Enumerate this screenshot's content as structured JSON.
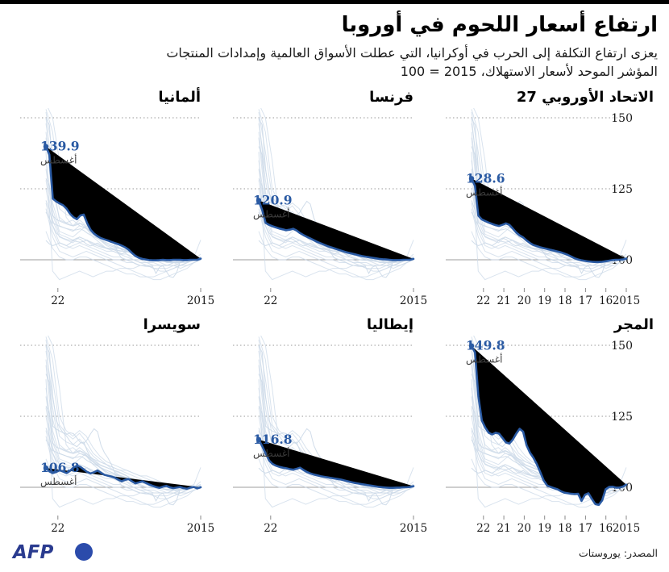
{
  "header": {
    "title": "ارتفاع أسعار اللحوم في أوروبا",
    "subtitle": "يعزى ارتفاع التكلفة إلى الحرب في أوكرانيا، التي عطلت الأسواق العالمية وإمدادات المنتجات",
    "index_note": "المؤشر الموحد لأسعار الاستهلاك، 2015 = 100"
  },
  "footer": {
    "afp_label": "AFP",
    "source": "المصدر: يوروستات"
  },
  "colors": {
    "accent": "#2a5aa3",
    "context_line": "#ccd9e8",
    "grid_dotted": "#999999",
    "baseline": "#9c9c9c",
    "tick": "#8a8a8a",
    "month_label": "#3c3c3c",
    "afp_navy": "#2a3b8f",
    "afp_blue": "#2b4bab"
  },
  "chart_data": {
    "type": "line",
    "note": "x axis runs right-to-left in time: left edge = Aug 2022, right edge = Jan 2015; 46 evenly spaced points per main series",
    "x_span_months": 91,
    "y_ticks": [
      {
        "label": "150",
        "value": 150,
        "style": "dotted"
      },
      {
        "label": "125",
        "value": 125,
        "style": "dotted"
      },
      {
        "label": "100",
        "value": 100,
        "style": "solid"
      }
    ],
    "panels": [
      {
        "id": "eu27",
        "title": "الاتحاد الأوروبي 27",
        "value_label": "128.6",
        "month_label": "أغسطس",
        "show_y_labels": true,
        "x_ticks": [
          {
            "label": "22",
            "month": 7
          },
          {
            "label": "21",
            "month": 19
          },
          {
            "label": "20",
            "month": 31
          },
          {
            "label": "19",
            "month": 43
          },
          {
            "label": "18",
            "month": 55
          },
          {
            "label": "17",
            "month": 67
          },
          {
            "label": "16",
            "month": 79
          },
          {
            "label": "2015",
            "month": 91
          }
        ],
        "values": [
          128.6,
          126.0,
          115.5,
          114.2,
          113.6,
          113.1,
          112.6,
          112.2,
          111.9,
          112.3,
          112.8,
          112.3,
          111.0,
          109.6,
          108.6,
          107.9,
          106.8,
          105.9,
          105.2,
          104.8,
          104.4,
          104.1,
          103.8,
          103.5,
          103.2,
          102.9,
          102.6,
          102.2,
          101.7,
          101.1,
          100.5,
          100.1,
          99.8,
          99.6,
          99.4,
          99.3,
          99.2,
          99.2,
          99.3,
          99.5,
          99.7,
          99.9,
          100.0,
          100.0,
          100.1,
          100.4
        ]
      },
      {
        "id": "france",
        "title": "فرنسا",
        "value_label": "120.9",
        "month_label": "أغسطس",
        "show_y_labels": false,
        "x_ticks": [
          {
            "label": "22",
            "month": 7
          },
          {
            "label": "2015",
            "month": 91
          }
        ],
        "values": [
          120.9,
          117.5,
          113.0,
          112.3,
          111.8,
          111.4,
          111.0,
          110.7,
          110.4,
          110.6,
          110.9,
          110.3,
          109.4,
          108.7,
          108.1,
          107.5,
          106.9,
          106.3,
          105.8,
          105.3,
          104.8,
          104.4,
          104.0,
          103.6,
          103.2,
          102.8,
          102.5,
          102.2,
          101.9,
          101.6,
          101.3,
          101.1,
          100.9,
          100.7,
          100.5,
          100.3,
          100.2,
          100.1,
          100.0,
          99.9,
          99.9,
          99.9,
          100.0,
          100.0,
          100.0,
          100.3
        ]
      },
      {
        "id": "germany",
        "title": "ألمانيا",
        "value_label": "139.9",
        "month_label": "أغسطس",
        "show_y_labels": false,
        "x_ticks": [
          {
            "label": "22",
            "month": 7
          },
          {
            "label": "2015",
            "month": 91
          }
        ],
        "values": [
          139.9,
          137.0,
          121.5,
          120.5,
          119.8,
          119.2,
          118.0,
          116.2,
          115.0,
          114.3,
          115.6,
          115.9,
          112.8,
          110.5,
          109.2,
          108.3,
          107.6,
          107.2,
          106.8,
          106.3,
          105.9,
          105.5,
          105.0,
          104.4,
          103.6,
          102.4,
          101.4,
          100.7,
          100.3,
          100.1,
          99.9,
          99.8,
          99.8,
          99.9,
          100.0,
          99.9,
          99.9,
          100.0,
          100.0,
          100.0,
          99.9,
          99.9,
          100.0,
          100.0,
          100.0,
          100.4
        ]
      },
      {
        "id": "hungary",
        "title": "المجر",
        "value_label": "149.8",
        "month_label": "أغسطس",
        "show_y_labels": true,
        "x_ticks": [
          {
            "label": "22",
            "month": 7
          },
          {
            "label": "21",
            "month": 19
          },
          {
            "label": "20",
            "month": 31
          },
          {
            "label": "19",
            "month": 43
          },
          {
            "label": "18",
            "month": 55
          },
          {
            "label": "17",
            "month": 67
          },
          {
            "label": "16",
            "month": 79
          },
          {
            "label": "2015",
            "month": 91
          }
        ],
        "values": [
          149.8,
          147.5,
          132.0,
          123.5,
          121.0,
          119.2,
          118.6,
          119.2,
          118.9,
          117.4,
          115.8,
          115.4,
          116.8,
          118.9,
          120.6,
          119.6,
          114.8,
          112.2,
          110.4,
          108.1,
          105.3,
          102.4,
          100.6,
          100.1,
          99.7,
          99.3,
          98.6,
          98.1,
          97.9,
          97.7,
          97.6,
          97.7,
          95.2,
          97.4,
          97.9,
          95.9,
          94.1,
          93.8,
          95.4,
          99.3,
          100.1,
          100.2,
          99.9,
          99.9,
          100.2,
          100.9
        ]
      },
      {
        "id": "italy",
        "title": "إيطاليا",
        "value_label": "116.8",
        "month_label": "أغسطس",
        "show_y_labels": false,
        "x_ticks": [
          {
            "label": "22",
            "month": 7
          },
          {
            "label": "2015",
            "month": 91
          }
        ],
        "values": [
          116.8,
          114.5,
          112.0,
          109.5,
          108.2,
          107.6,
          107.2,
          106.9,
          106.7,
          106.4,
          106.2,
          106.5,
          106.9,
          106.1,
          105.4,
          104.9,
          104.5,
          104.2,
          103.9,
          103.7,
          103.5,
          103.3,
          103.1,
          102.9,
          102.7,
          102.4,
          102.1,
          101.8,
          101.5,
          101.3,
          101.1,
          100.9,
          100.7,
          100.5,
          100.3,
          100.1,
          100.0,
          99.9,
          99.8,
          99.8,
          99.9,
          99.9,
          100.0,
          100.0,
          100.1,
          100.4
        ]
      },
      {
        "id": "switzerland",
        "title": "سويسرا",
        "value_label": "106.8",
        "month_label": "أغسطس",
        "show_y_labels": false,
        "x_ticks": [
          {
            "label": "22",
            "month": 7
          },
          {
            "label": "2015",
            "month": 91
          }
        ],
        "values": [
          106.8,
          105.6,
          105.0,
          105.4,
          106.0,
          105.5,
          105.0,
          105.8,
          106.9,
          107.6,
          107.2,
          106.3,
          105.4,
          104.9,
          105.3,
          105.9,
          105.1,
          104.4,
          104.1,
          103.8,
          103.4,
          102.7,
          102.1,
          102.6,
          102.9,
          102.1,
          101.4,
          101.7,
          102.1,
          101.6,
          101.0,
          100.5,
          100.1,
          99.8,
          100.2,
          100.5,
          100.0,
          99.7,
          99.9,
          100.1,
          99.7,
          99.5,
          99.9,
          100.1,
          99.6,
          100.0
        ]
      }
    ],
    "context_series": [
      [
        150,
        128,
        114,
        113,
        114,
        112,
        111,
        110,
        109,
        108,
        107,
        106,
        106,
        105,
        104,
        104,
        103,
        102,
        101,
        101,
        100,
        100,
        100,
        100
      ],
      [
        143,
        120,
        112,
        111,
        110,
        112,
        111,
        109,
        107,
        106,
        105,
        104,
        103,
        103,
        102,
        102,
        101,
        101,
        100,
        100,
        99,
        99,
        100,
        100
      ],
      [
        135,
        118,
        110,
        109,
        108,
        110,
        112,
        109,
        107,
        105,
        104,
        104,
        103,
        102,
        102,
        101,
        101,
        100,
        100,
        99,
        99,
        100,
        100,
        101
      ],
      [
        148,
        132,
        118,
        116,
        115,
        117,
        114,
        111,
        109,
        108,
        107,
        106,
        105,
        104,
        103,
        102,
        101,
        100,
        99,
        99,
        98,
        98,
        99,
        100
      ],
      [
        128,
        114,
        108,
        107,
        106,
        108,
        107,
        105,
        104,
        103,
        103,
        102,
        102,
        101,
        101,
        100,
        100,
        100,
        99,
        99,
        99,
        100,
        100,
        100
      ],
      [
        152,
        138,
        122,
        119,
        117,
        119,
        116,
        112,
        110,
        108,
        106,
        104,
        102,
        100,
        99,
        98,
        97,
        96,
        96,
        97,
        98,
        99,
        100,
        100
      ],
      [
        120,
        110,
        105,
        104,
        105,
        106,
        105,
        104,
        103,
        102,
        101,
        101,
        100,
        100,
        99,
        99,
        98,
        98,
        98,
        99,
        99,
        100,
        100,
        102
      ],
      [
        145,
        124,
        115,
        113,
        112,
        114,
        112,
        110,
        108,
        107,
        106,
        105,
        104,
        103,
        102,
        101,
        100,
        99,
        98,
        98,
        97,
        98,
        99,
        100
      ],
      [
        110,
        104,
        101,
        100,
        100,
        101,
        101,
        100,
        99,
        98,
        97,
        96,
        95,
        95,
        94,
        94,
        93,
        93,
        94,
        95,
        96,
        97,
        99,
        100
      ],
      [
        153,
        145,
        125,
        120,
        118,
        120,
        118,
        114,
        111,
        109,
        108,
        107,
        106,
        105,
        104,
        103,
        102,
        101,
        100,
        99,
        99,
        100,
        100,
        101
      ],
      [
        132,
        116,
        109,
        108,
        107,
        108,
        107,
        106,
        105,
        104,
        104,
        103,
        103,
        102,
        102,
        101,
        101,
        101,
        100,
        100,
        100,
        100,
        101,
        107
      ],
      [
        125,
        112,
        106,
        105,
        104,
        105,
        104,
        103,
        102,
        101,
        100,
        100,
        99,
        99,
        98,
        98,
        97,
        97,
        97,
        98,
        98,
        99,
        100,
        100
      ],
      [
        155,
        150,
        135,
        115,
        112,
        113,
        111,
        108,
        106,
        104,
        103,
        102,
        101,
        100,
        100,
        99,
        99,
        98,
        98,
        98,
        99,
        100,
        100,
        100
      ],
      [
        118,
        108,
        103,
        102,
        101,
        102,
        103,
        102,
        101,
        100,
        99,
        98,
        97,
        96,
        95,
        94,
        94,
        95,
        96,
        97,
        98,
        99,
        100,
        100
      ],
      [
        138,
        96,
        93,
        94,
        95,
        96,
        95,
        94,
        95,
        96,
        96,
        97,
        97,
        97,
        98,
        98,
        98,
        98,
        98,
        99,
        99,
        100,
        100,
        100
      ]
    ]
  }
}
